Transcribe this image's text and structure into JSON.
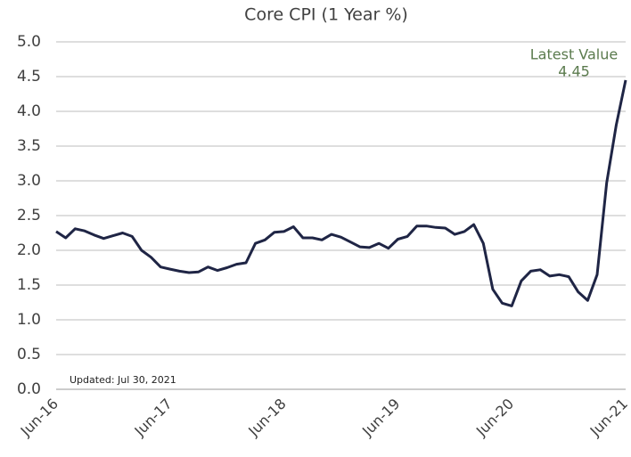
{
  "chart_data": {
    "type": "line",
    "title": "Core CPI (1 Year %)",
    "categories": [
      "Jun-16",
      null,
      null,
      null,
      null,
      null,
      null,
      null,
      null,
      null,
      null,
      null,
      "Jun-17",
      null,
      null,
      null,
      null,
      null,
      null,
      null,
      null,
      null,
      null,
      null,
      "Jun-18",
      null,
      null,
      null,
      null,
      null,
      null,
      null,
      null,
      null,
      null,
      null,
      "Jun-19",
      null,
      null,
      null,
      null,
      null,
      null,
      null,
      null,
      null,
      null,
      null,
      "Jun-20",
      null,
      null,
      null,
      null,
      null,
      null,
      null,
      null,
      null,
      null,
      null,
      "Jun-21"
    ],
    "values": [
      2.27,
      2.18,
      2.31,
      2.28,
      2.22,
      2.17,
      2.21,
      2.25,
      2.2,
      2.0,
      1.9,
      1.76,
      1.73,
      1.7,
      1.68,
      1.69,
      1.76,
      1.71,
      1.75,
      1.8,
      1.82,
      2.1,
      2.15,
      2.26,
      2.27,
      2.34,
      2.18,
      2.18,
      2.15,
      2.23,
      2.19,
      2.12,
      2.05,
      2.04,
      2.1,
      2.03,
      2.16,
      2.2,
      2.35,
      2.35,
      2.33,
      2.32,
      2.23,
      2.27,
      2.37,
      2.1,
      1.44,
      1.24,
      1.2,
      1.56,
      1.7,
      1.72,
      1.63,
      1.65,
      1.62,
      1.4,
      1.28,
      1.65,
      2.97,
      3.8,
      4.45
    ],
    "color": "#1f2545",
    "ylim": [
      0,
      5
    ],
    "yticks": [
      {
        "value": 0,
        "label": "0.0"
      },
      {
        "value": 0.5,
        "label": "0.5"
      },
      {
        "value": 1,
        "label": "1.0"
      },
      {
        "value": 1.5,
        "label": "1.5"
      },
      {
        "value": 2,
        "label": "2.0"
      },
      {
        "value": 2.5,
        "label": "2.5"
      },
      {
        "value": 3,
        "label": "3.0"
      },
      {
        "value": 3.5,
        "label": "3.5"
      },
      {
        "value": 4,
        "label": "4.0"
      },
      {
        "value": 4.5,
        "label": "4.5"
      },
      {
        "value": 5,
        "label": "5.0"
      }
    ],
    "grid": true,
    "annotation": "Latest Value",
    "footnote": "Updated: Jul 30, 2021"
  }
}
